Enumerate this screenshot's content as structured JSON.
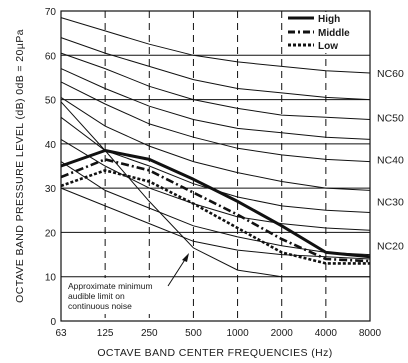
{
  "chart_data": {
    "type": "line",
    "xlabel": "OCTAVE BAND CENTER FREQUENCIES (Hz)",
    "ylabel": "OCTAVE BAND PRESSURE LEVEL (dB) 0dB = 20µPa",
    "x": [
      "63",
      "125",
      "250",
      "500",
      "1000",
      "2000",
      "4000",
      "8000"
    ],
    "ylim": [
      0,
      70
    ],
    "yticks": [
      "0",
      "10",
      "20",
      "30",
      "40",
      "50",
      "60",
      "70"
    ],
    "grid": {
      "horizontal": true,
      "vertical": "dashed"
    },
    "legend": {
      "position": "top-right",
      "entries": [
        {
          "label": "High",
          "style": "solid"
        },
        {
          "label": "Middle",
          "style": "dash-dot"
        },
        {
          "label": "Low",
          "style": "dotted"
        }
      ]
    },
    "nc_labels": [
      {
        "label": "NC60",
        "value": 56
      },
      {
        "label": "NC50",
        "value": 46
      },
      {
        "label": "NC40",
        "value": 36.5
      },
      {
        "label": "NC30",
        "value": 27
      },
      {
        "label": "NC20",
        "value": 17
      }
    ],
    "nc_curves": [
      [
        68.5,
        65.5,
        62.5,
        60,
        58.5,
        57.5,
        56.5,
        56
      ],
      [
        64,
        60.5,
        57.5,
        54.5,
        52.5,
        51.5,
        50.5,
        50
      ],
      [
        60.5,
        57,
        53,
        50,
        48,
        46.5,
        46,
        45.5
      ],
      [
        57,
        52.5,
        48.5,
        45.5,
        43.5,
        42.5,
        41.5,
        41
      ],
      [
        54,
        49,
        44.5,
        41.5,
        39,
        37.5,
        36.5,
        36
      ],
      [
        50.5,
        44,
        39.5,
        36,
        33.5,
        31.5,
        30,
        29.5
      ],
      [
        46,
        38.5,
        35,
        31,
        28,
        26,
        25,
        24.5
      ],
      [
        41,
        35,
        30,
        26.5,
        23.5,
        22,
        21,
        20.5
      ],
      [
        36,
        29.5,
        25.5,
        21.5,
        19,
        17,
        15.5,
        15
      ],
      [
        30,
        26,
        22,
        18,
        16,
        15,
        14.5,
        14
      ]
    ],
    "series": [
      {
        "name": "High",
        "values": [
          35,
          38.5,
          36.5,
          32,
          27,
          21.5,
          15.5,
          14.5
        ]
      },
      {
        "name": "Middle",
        "values": [
          32.5,
          36.5,
          34,
          29,
          24,
          18.5,
          14,
          13.5
        ]
      },
      {
        "name": "Low",
        "values": [
          30.5,
          34,
          31.5,
          26.5,
          21,
          15.5,
          13,
          13
        ]
      }
    ],
    "audible_limit": {
      "label": "Approximate minimum audible limit on continuous noise",
      "label_lines": [
        "Approximate minimum",
        "audible limit on",
        "continuous noise"
      ],
      "values": [
        49.5,
        38.5,
        27,
        16.5,
        11.5,
        10,
        10,
        10
      ]
    }
  }
}
